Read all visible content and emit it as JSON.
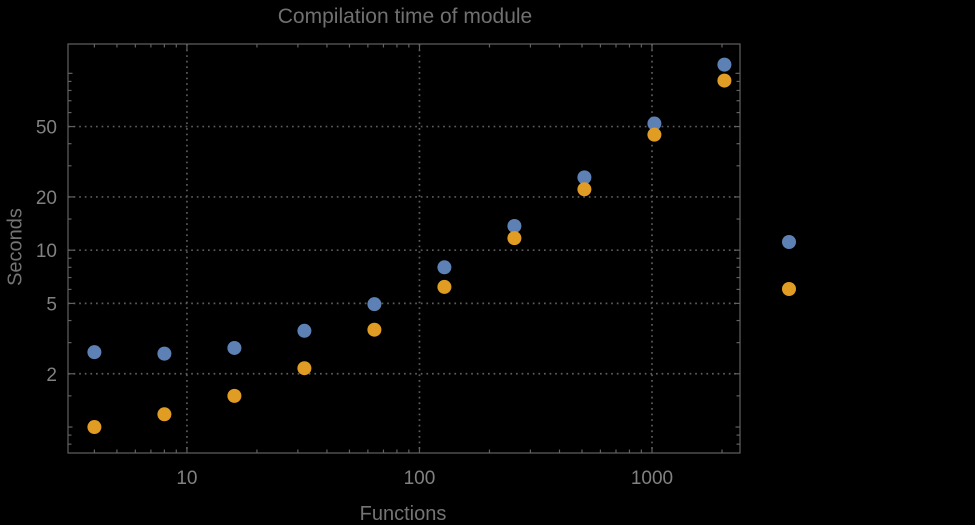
{
  "chart_data": {
    "type": "scatter",
    "title": "Compilation time of module",
    "xlabel": "Functions",
    "ylabel": "Seconds",
    "x_scale": "log",
    "y_scale": "log",
    "grid": "dotted",
    "x": [
      4,
      8,
      16,
      32,
      64,
      128,
      256,
      512,
      1024,
      2048
    ],
    "series": [
      {
        "label": "",
        "color": "#5e81b5",
        "values": [
          2.65,
          2.6,
          2.8,
          3.5,
          4.95,
          8.0,
          13.7,
          25.8,
          52,
          112
        ]
      },
      {
        "label": "",
        "color": "#e19c24",
        "values": [
          1.0,
          1.18,
          1.5,
          2.15,
          3.55,
          6.2,
          11.7,
          22.1,
          45,
          91
        ]
      }
    ],
    "x_ticks": [
      10,
      100,
      1000
    ],
    "x_tick_labels": [
      "10",
      "100",
      "1000"
    ],
    "x_minor_ticks": [
      4,
      5,
      6,
      7,
      8,
      9,
      20,
      30,
      40,
      50,
      60,
      70,
      80,
      90,
      200,
      300,
      400,
      500,
      600,
      700,
      800,
      900,
      2000
    ],
    "y_ticks": [
      2,
      5,
      10,
      20,
      50
    ],
    "y_tick_labels": [
      "2",
      "5",
      "10",
      "20",
      "50"
    ],
    "y_minor_ticks": [
      0.8,
      0.9,
      1.5,
      3,
      4,
      6,
      7,
      8,
      9,
      15,
      30,
      40,
      60,
      70,
      80,
      90
    ],
    "y_decade_ticks": [
      1,
      100
    ],
    "xlim": [
      3.08,
      2390
    ],
    "ylim": [
      0.713,
      146.5
    ],
    "legend": {
      "position": "right",
      "entries": [
        {
          "label": "",
          "color": "#5e81b5"
        },
        {
          "label": "",
          "color": "#e19c24"
        }
      ]
    }
  },
  "style": {
    "background": "#000000",
    "frame_color": "#616161",
    "grid_color": "#5c5c5c",
    "tick_label_color": "#818181",
    "axis_label_color": "#747474",
    "title_color": "#707070"
  }
}
